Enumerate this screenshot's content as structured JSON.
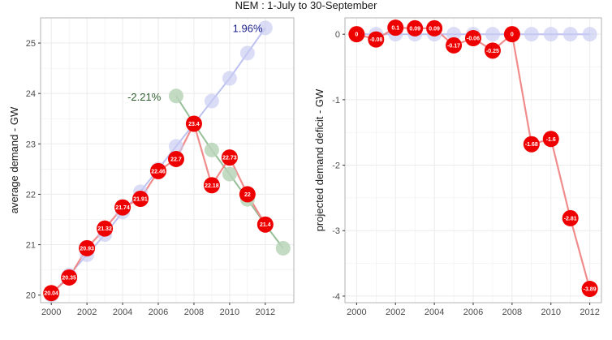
{
  "title": "NEM : 1-July to 30-September",
  "colors": {
    "observed": "#ee0000",
    "observed_line": "#f08080",
    "trend_up": "#c8cbf2",
    "trend_up_line": "#b7bbf0",
    "trend_down": "#b9d3b9",
    "trend_down_line": "#8cb88c",
    "annot_up": "#1b1f8a",
    "annot_down": "#2e5e2e",
    "grid": "#ebebeb",
    "panel_border": "#b3b3b3"
  },
  "chart_data": [
    {
      "type": "line",
      "xlabel": "",
      "ylabel": "average demand - GW",
      "xlim": [
        1999.4,
        2013.6
      ],
      "ylim": [
        19.85,
        25.5
      ],
      "xticks": [
        2000,
        2002,
        2004,
        2006,
        2008,
        2010,
        2012
      ],
      "yticks": [
        20,
        21,
        22,
        23,
        24,
        25
      ],
      "grid": true,
      "series": [
        {
          "role": "trend_up",
          "x": [
            2000,
            2001,
            2002,
            2003,
            2004,
            2005,
            2006,
            2007,
            2008,
            2009,
            2010,
            2011,
            2012
          ],
          "y": [
            20.0,
            20.4,
            20.8,
            21.2,
            21.65,
            22.05,
            22.5,
            22.95,
            23.4,
            23.85,
            24.3,
            24.8,
            25.3
          ]
        },
        {
          "role": "trend_down",
          "x": [
            2007,
            2008,
            2009,
            2010,
            2011,
            2012,
            2013
          ],
          "y": [
            23.95,
            23.4,
            22.88,
            22.4,
            21.9,
            21.4,
            20.93
          ]
        },
        {
          "role": "observed",
          "x": [
            2000,
            2001,
            2002,
            2003,
            2004,
            2005,
            2006,
            2007,
            2008,
            2009,
            2010,
            2011,
            2012
          ],
          "y": [
            20.04,
            20.35,
            20.93,
            21.32,
            21.74,
            21.91,
            22.46,
            22.7,
            23.4,
            22.18,
            22.73,
            22.0,
            21.4
          ],
          "labels": [
            "20.04",
            "20.35",
            "20.93",
            "21.32",
            "21.74",
            "21.91",
            "22.46",
            "22.7",
            "23.4",
            "22.18",
            "22.73",
            "22",
            "21.4"
          ]
        }
      ],
      "annotations": [
        {
          "text": "1.96%",
          "x": 2011.85,
          "y": 25.28,
          "role": "annot_up"
        },
        {
          "text": "-2.21%",
          "x": 2006.15,
          "y": 23.92,
          "role": "annot_down"
        }
      ]
    },
    {
      "type": "line",
      "xlabel": "",
      "ylabel": "projected demand deficit - GW",
      "xlim": [
        1999.4,
        2012.6
      ],
      "ylim": [
        -4.1,
        0.25
      ],
      "xticks": [
        2000,
        2002,
        2004,
        2006,
        2008,
        2010,
        2012
      ],
      "yticks": [
        0,
        -1,
        -2,
        -3,
        -4
      ],
      "grid": true,
      "series": [
        {
          "role": "trend_up",
          "x": [
            2000,
            2001,
            2002,
            2003,
            2004,
            2005,
            2006,
            2007,
            2008,
            2009,
            2010,
            2011,
            2012
          ],
          "y": [
            0,
            0,
            0,
            0,
            0,
            0,
            0,
            0,
            0,
            0,
            0,
            0,
            0
          ]
        },
        {
          "role": "observed",
          "x": [
            2000,
            2001,
            2002,
            2003,
            2004,
            2005,
            2006,
            2007,
            2008,
            2009,
            2010,
            2011,
            2012
          ],
          "y": [
            0,
            -0.08,
            0.1,
            0.09,
            0.09,
            -0.17,
            -0.06,
            -0.25,
            0,
            -1.68,
            -1.6,
            -2.81,
            -3.89
          ],
          "labels": [
            "0",
            "-0.08",
            "0.1",
            "0.09",
            "0.09",
            "-0.17",
            "-0.06",
            "-0.25",
            "0",
            "-1.68",
            "-1.6",
            "-2.81",
            "-3.89"
          ]
        }
      ],
      "annotations": []
    }
  ]
}
